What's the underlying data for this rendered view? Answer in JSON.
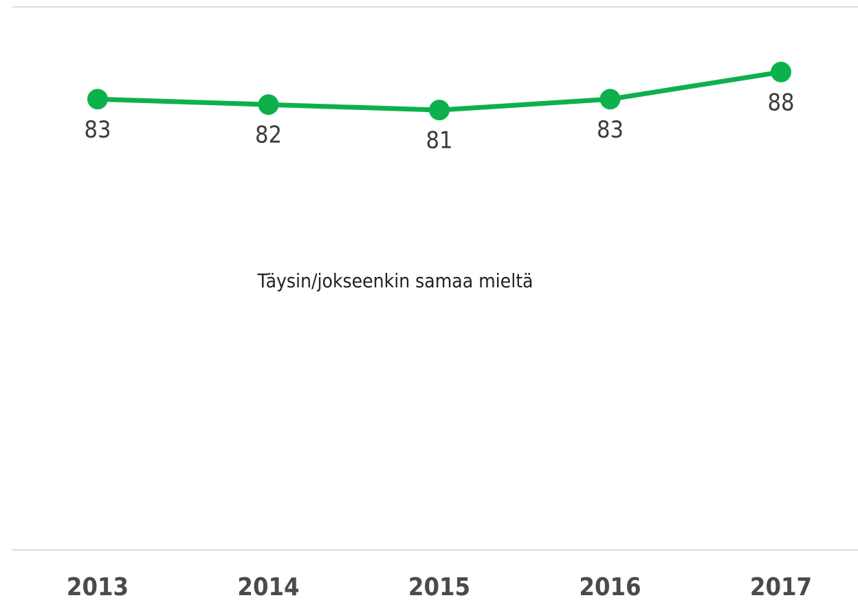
{
  "chart_data": {
    "type": "line",
    "categories": [
      "2013",
      "2014",
      "2015",
      "2016",
      "2017"
    ],
    "series": [
      {
        "name": "Täysin/jokseenkin samaa mieltä",
        "color": "#0db14b",
        "values": [
          83,
          82,
          81,
          83,
          88
        ]
      }
    ],
    "ylim": [
      0,
      100
    ],
    "yticks": [
      0,
      100
    ],
    "grid": true
  }
}
